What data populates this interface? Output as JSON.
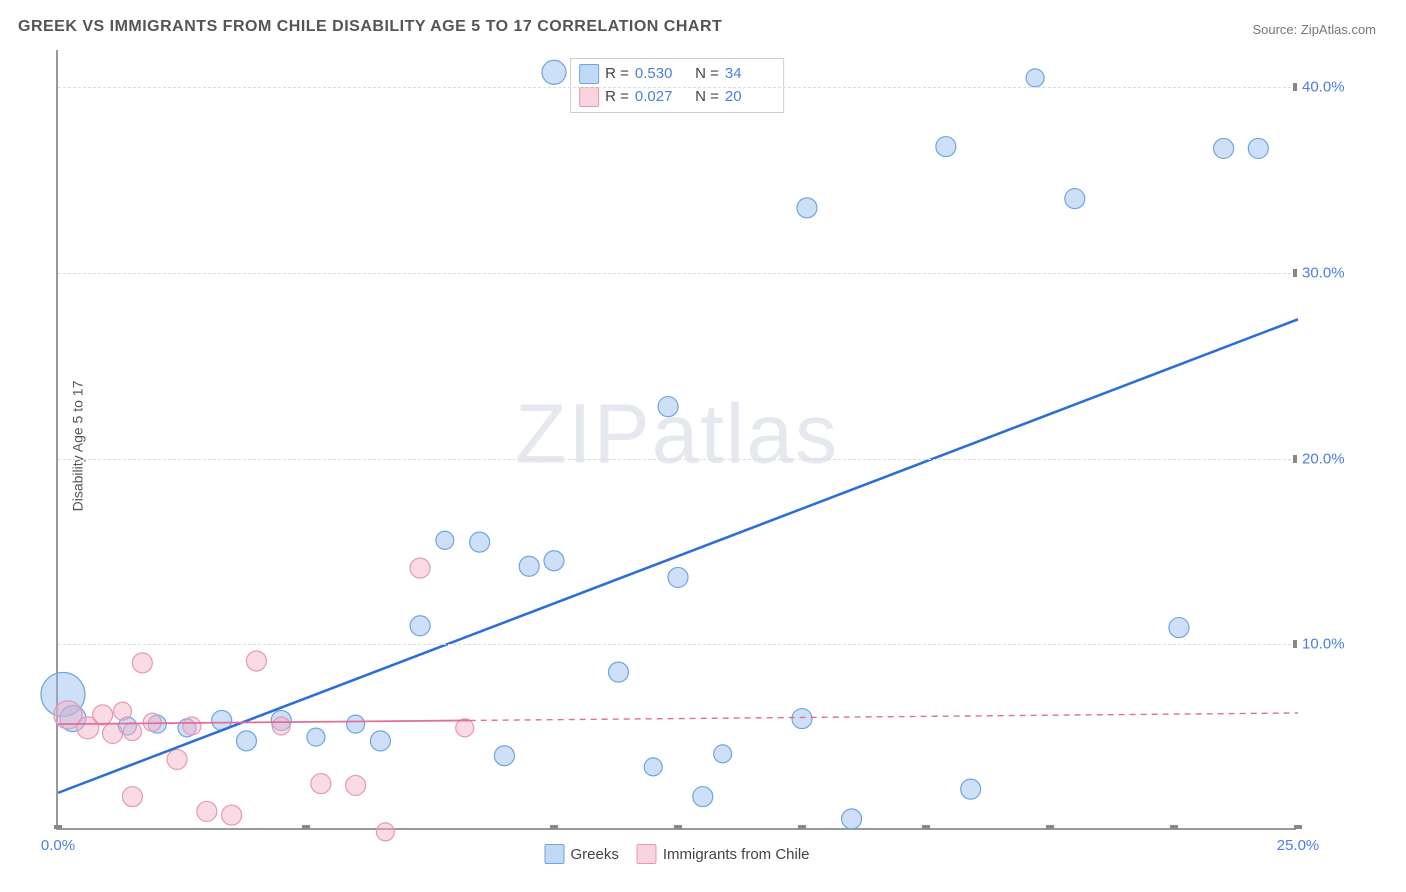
{
  "title": "GREEK VS IMMIGRANTS FROM CHILE DISABILITY AGE 5 TO 17 CORRELATION CHART",
  "source": "Source: ZipAtlas.com",
  "ylabel": "Disability Age 5 to 17",
  "watermark": {
    "zip": "ZIP",
    "atlas": "atlas"
  },
  "chart": {
    "type": "scatter",
    "xlim": [
      0,
      25
    ],
    "ylim": [
      0,
      42
    ],
    "xticks": [
      {
        "v": 0,
        "label": "0.0%"
      },
      {
        "v": 5,
        "label": ""
      },
      {
        "v": 10,
        "label": ""
      },
      {
        "v": 12.5,
        "label": ""
      },
      {
        "v": 15,
        "label": ""
      },
      {
        "v": 17.5,
        "label": ""
      },
      {
        "v": 20,
        "label": ""
      },
      {
        "v": 22.5,
        "label": ""
      },
      {
        "v": 25,
        "label": "25.0%"
      }
    ],
    "yticks": [
      {
        "v": 10,
        "label": "10.0%"
      },
      {
        "v": 20,
        "label": "20.0%"
      },
      {
        "v": 30,
        "label": "30.0%"
      },
      {
        "v": 40,
        "label": "40.0%"
      }
    ],
    "background_color": "#ffffff",
    "grid_color": "#dddddd",
    "axis_color": "#999999",
    "tick_label_color": "#4a7fe0",
    "series": [
      {
        "name": "Greeks",
        "color_fill": "rgba(144,186,237,0.45)",
        "color_stroke": "#6ea5e0",
        "trend": {
          "x1": 0,
          "y1": 2.0,
          "x2": 25,
          "y2": 27.5,
          "stroke": "#2b6fd6",
          "width": 2.5,
          "dash": ""
        },
        "points": [
          {
            "x": 0.1,
            "y": 7.3,
            "r": 22
          },
          {
            "x": 0.3,
            "y": 6.0,
            "r": 13
          },
          {
            "x": 10.0,
            "y": 40.8,
            "r": 12
          },
          {
            "x": 15.1,
            "y": 33.5,
            "r": 10
          },
          {
            "x": 17.9,
            "y": 36.8,
            "r": 10
          },
          {
            "x": 19.7,
            "y": 40.5,
            "r": 9
          },
          {
            "x": 20.5,
            "y": 34.0,
            "r": 10
          },
          {
            "x": 23.5,
            "y": 36.7,
            "r": 10
          },
          {
            "x": 24.2,
            "y": 36.7,
            "r": 10
          },
          {
            "x": 12.3,
            "y": 22.8,
            "r": 10
          },
          {
            "x": 22.6,
            "y": 10.9,
            "r": 10
          },
          {
            "x": 12.5,
            "y": 13.6,
            "r": 10
          },
          {
            "x": 11.3,
            "y": 8.5,
            "r": 10
          },
          {
            "x": 12.0,
            "y": 3.4,
            "r": 9
          },
          {
            "x": 13.0,
            "y": 1.8,
            "r": 10
          },
          {
            "x": 13.4,
            "y": 4.1,
            "r": 9
          },
          {
            "x": 15.0,
            "y": 6.0,
            "r": 10
          },
          {
            "x": 16.0,
            "y": 0.6,
            "r": 10
          },
          {
            "x": 18.4,
            "y": 2.2,
            "r": 10
          },
          {
            "x": 9.5,
            "y": 14.2,
            "r": 10
          },
          {
            "x": 8.5,
            "y": 15.5,
            "r": 10
          },
          {
            "x": 7.8,
            "y": 15.6,
            "r": 9
          },
          {
            "x": 7.3,
            "y": 11.0,
            "r": 10
          },
          {
            "x": 6.5,
            "y": 4.8,
            "r": 10
          },
          {
            "x": 6.0,
            "y": 5.7,
            "r": 9
          },
          {
            "x": 5.2,
            "y": 5.0,
            "r": 9
          },
          {
            "x": 4.5,
            "y": 5.9,
            "r": 10
          },
          {
            "x": 3.8,
            "y": 4.8,
            "r": 10
          },
          {
            "x": 3.3,
            "y": 5.9,
            "r": 10
          },
          {
            "x": 2.6,
            "y": 5.5,
            "r": 9
          },
          {
            "x": 2.0,
            "y": 5.7,
            "r": 9
          },
          {
            "x": 1.4,
            "y": 5.6,
            "r": 9
          },
          {
            "x": 9.0,
            "y": 4.0,
            "r": 10
          },
          {
            "x": 10.0,
            "y": 14.5,
            "r": 10
          }
        ]
      },
      {
        "name": "Immigrants from Chile",
        "color_fill": "rgba(244,176,196,0.45)",
        "color_stroke": "#e598b3",
        "trend": {
          "x1": 0,
          "y1": 5.7,
          "x2": 25,
          "y2": 6.3,
          "stroke": "#e16f97",
          "width": 1.4,
          "dash": "6 5"
        },
        "trend_solid_to": 8.3,
        "points": [
          {
            "x": 0.2,
            "y": 6.2,
            "r": 14
          },
          {
            "x": 0.6,
            "y": 5.5,
            "r": 11
          },
          {
            "x": 0.9,
            "y": 6.2,
            "r": 10
          },
          {
            "x": 1.1,
            "y": 5.2,
            "r": 10
          },
          {
            "x": 1.3,
            "y": 6.4,
            "r": 9
          },
          {
            "x": 1.5,
            "y": 5.3,
            "r": 9
          },
          {
            "x": 1.7,
            "y": 9.0,
            "r": 10
          },
          {
            "x": 1.9,
            "y": 5.8,
            "r": 9
          },
          {
            "x": 1.5,
            "y": 1.8,
            "r": 10
          },
          {
            "x": 2.4,
            "y": 3.8,
            "r": 10
          },
          {
            "x": 2.7,
            "y": 5.6,
            "r": 9
          },
          {
            "x": 3.0,
            "y": 1.0,
            "r": 10
          },
          {
            "x": 3.5,
            "y": 0.8,
            "r": 10
          },
          {
            "x": 4.0,
            "y": 9.1,
            "r": 10
          },
          {
            "x": 4.5,
            "y": 5.6,
            "r": 9
          },
          {
            "x": 5.3,
            "y": 2.5,
            "r": 10
          },
          {
            "x": 6.0,
            "y": 2.4,
            "r": 10
          },
          {
            "x": 6.6,
            "y": -0.1,
            "r": 9
          },
          {
            "x": 7.3,
            "y": 14.1,
            "r": 10
          },
          {
            "x": 8.2,
            "y": 5.5,
            "r": 9
          }
        ]
      }
    ],
    "stats": [
      {
        "color_fill": "rgba(144,186,237,0.55)",
        "color_stroke": "#6ea5e0",
        "R": "0.530",
        "N": "34"
      },
      {
        "color_fill": "rgba(244,176,196,0.55)",
        "color_stroke": "#e598b3",
        "R": "0.027",
        "N": "20"
      }
    ],
    "legend": [
      {
        "label": "Greeks",
        "fill": "rgba(144,186,237,0.55)",
        "stroke": "#6ea5e0"
      },
      {
        "label": "Immigrants from Chile",
        "fill": "rgba(244,176,196,0.55)",
        "stroke": "#e598b3"
      }
    ]
  }
}
